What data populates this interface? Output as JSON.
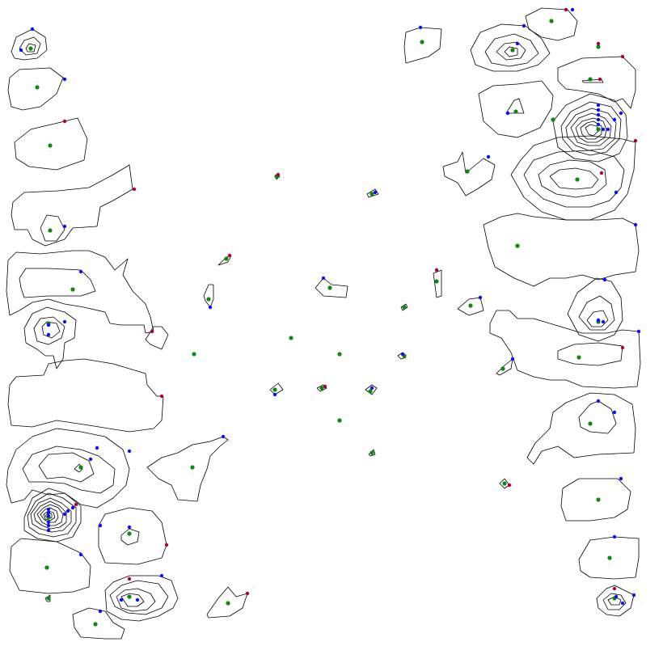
{
  "diagram": {
    "kind": "contour-map",
    "background": "#ffffff",
    "line_color": "#000000",
    "point_colors": {
      "centroid": "#0a8a0a",
      "vertex": "#1010ee",
      "boundary": "#aa0044"
    },
    "point_types": [
      "centroid",
      "vertex",
      "boundary"
    ],
    "labels": []
  }
}
